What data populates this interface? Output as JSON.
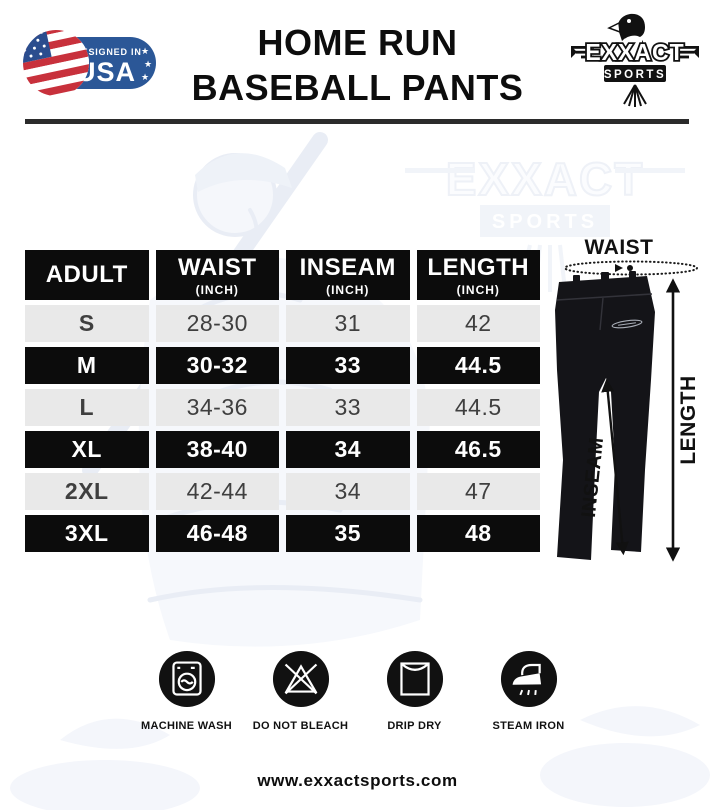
{
  "header": {
    "badge": {
      "line1": "DESIGNED IN",
      "line2": "USA"
    },
    "title_line1": "HOME RUN",
    "title_line2": "BASEBALL PANTS",
    "logo": {
      "name": "EXXACT",
      "sub": "SPORTS"
    }
  },
  "watermark": {
    "brand": "EXXACT",
    "brand_sub": "SPORTS"
  },
  "size_chart": {
    "columns": [
      {
        "label": "ADULT",
        "unit": ""
      },
      {
        "label": "WAIST",
        "unit": "(INCH)"
      },
      {
        "label": "INSEAM",
        "unit": "(INCH)"
      },
      {
        "label": "LENGTH",
        "unit": "(INCH)"
      }
    ],
    "rows": [
      {
        "size": "S",
        "waist": "28-30",
        "inseam": "31",
        "length": "42"
      },
      {
        "size": "M",
        "waist": "30-32",
        "inseam": "33",
        "length": "44.5"
      },
      {
        "size": "L",
        "waist": "34-36",
        "inseam": "33",
        "length": "44.5"
      },
      {
        "size": "XL",
        "waist": "38-40",
        "inseam": "34",
        "length": "46.5"
      },
      {
        "size": "2XL",
        "waist": "42-44",
        "inseam": "34",
        "length": "47"
      },
      {
        "size": "3XL",
        "waist": "46-48",
        "inseam": "35",
        "length": "48"
      }
    ]
  },
  "pants_diagram": {
    "waist_label": "WAIST",
    "length_label": "LENGTH",
    "inseam_label": "INSEAM"
  },
  "care_icons": [
    {
      "icon": "machine-wash-icon",
      "label": "MACHINE WASH"
    },
    {
      "icon": "do-not-bleach-icon",
      "label": "DO NOT BLEACH"
    },
    {
      "icon": "drip-dry-icon",
      "label": "DRIP DRY"
    },
    {
      "icon": "steam-iron-icon",
      "label": "STEAM IRON"
    }
  ],
  "footer": {
    "website": "www.exxactsports.com"
  },
  "colors": {
    "table_dark": "#0c0c0c",
    "table_light": "#e9e9e9",
    "badge_blue": "#2b5797",
    "flag_red": "#c8313c",
    "divider": "#2b2b2b",
    "pants_black": "#141418"
  }
}
